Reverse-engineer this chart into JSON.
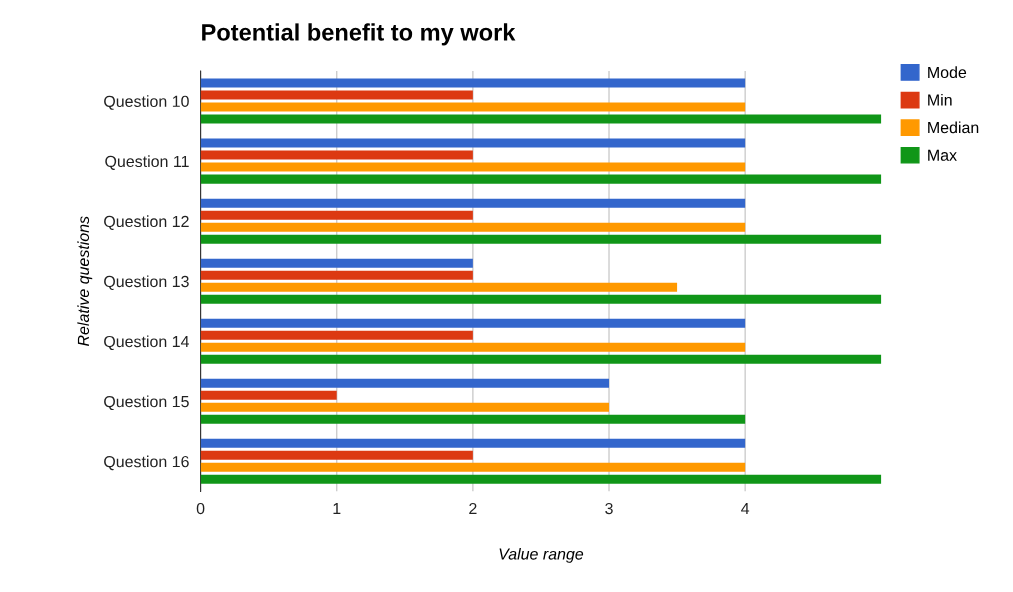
{
  "chart_data": {
    "type": "bar",
    "orientation": "horizontal",
    "title": "Potential benefit to my work",
    "xlabel": "Value range",
    "ylabel": "Relative questions",
    "categories": [
      "Question 10",
      "Question 11",
      "Question 12",
      "Question 13",
      "Question 14",
      "Question 15",
      "Question 16"
    ],
    "series": [
      {
        "name": "Mode",
        "color": "#3366cc",
        "values": [
          4,
          4,
          4,
          2,
          4,
          3,
          4
        ]
      },
      {
        "name": "Min",
        "color": "#dc3912",
        "values": [
          2,
          2,
          2,
          2,
          2,
          1,
          2
        ]
      },
      {
        "name": "Median",
        "color": "#ff9900",
        "values": [
          4,
          4,
          4,
          3.5,
          4,
          3,
          4
        ]
      },
      {
        "name": "Max",
        "color": "#109618",
        "values": [
          5,
          5,
          5,
          5,
          5,
          4,
          5
        ]
      }
    ],
    "xlim": [
      0,
      5
    ],
    "xticks": [
      0,
      1,
      2,
      3,
      4
    ],
    "grid": "x",
    "legend": "top right"
  }
}
